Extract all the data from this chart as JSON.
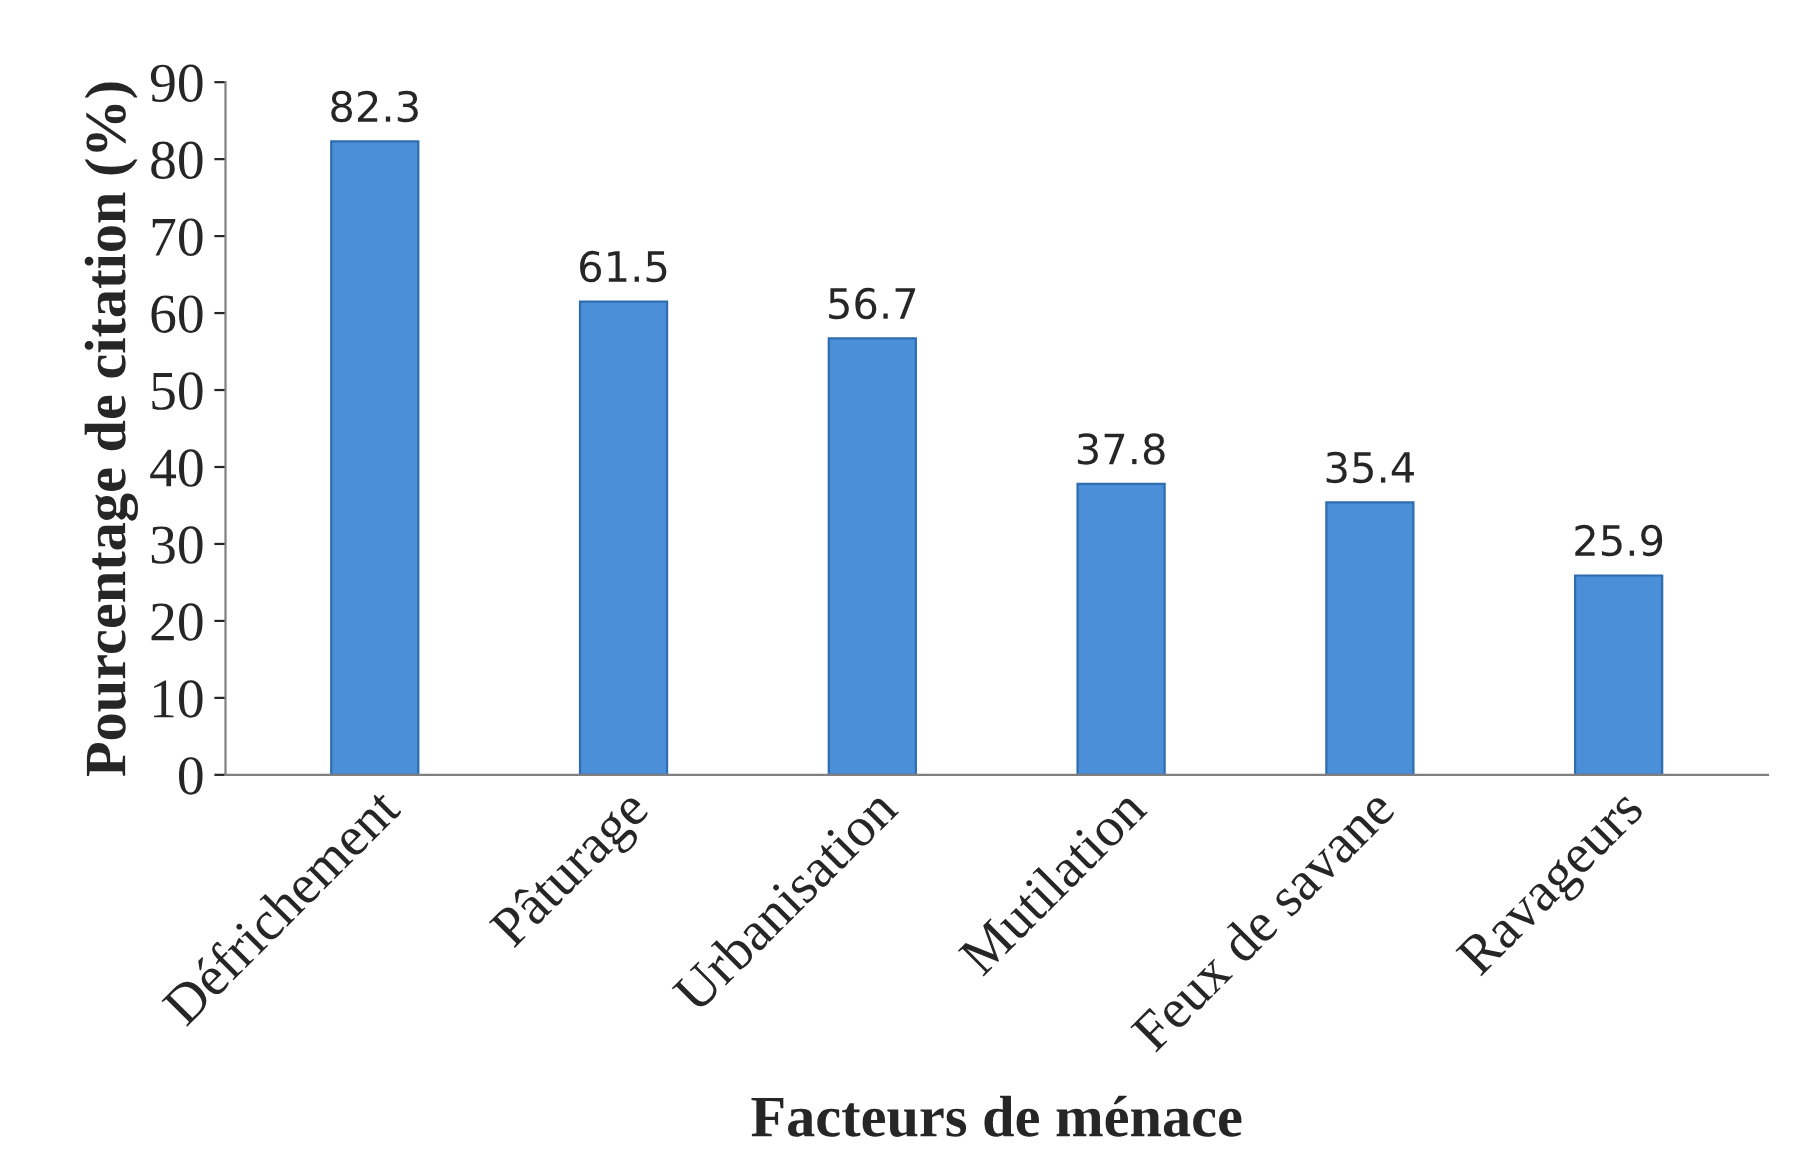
{
  "chart_data": {
    "type": "bar",
    "xlabel": "Facteurs de ménace",
    "ylabel": "Pourcentage de citation (%)",
    "categories": [
      "Défrichement",
      "Pâturage",
      "Urbanisation",
      "Mutilation",
      "Feux de savane",
      "Ravageurs"
    ],
    "values": [
      82.3,
      61.5,
      56.7,
      37.8,
      35.4,
      25.9
    ],
    "color": "#4a8fd8",
    "ylim": [
      0,
      90
    ],
    "yticks": [
      0,
      10,
      20,
      30,
      40,
      50,
      60,
      70,
      80,
      90
    ],
    "data_labels": true,
    "grid": false,
    "legend": false
  }
}
